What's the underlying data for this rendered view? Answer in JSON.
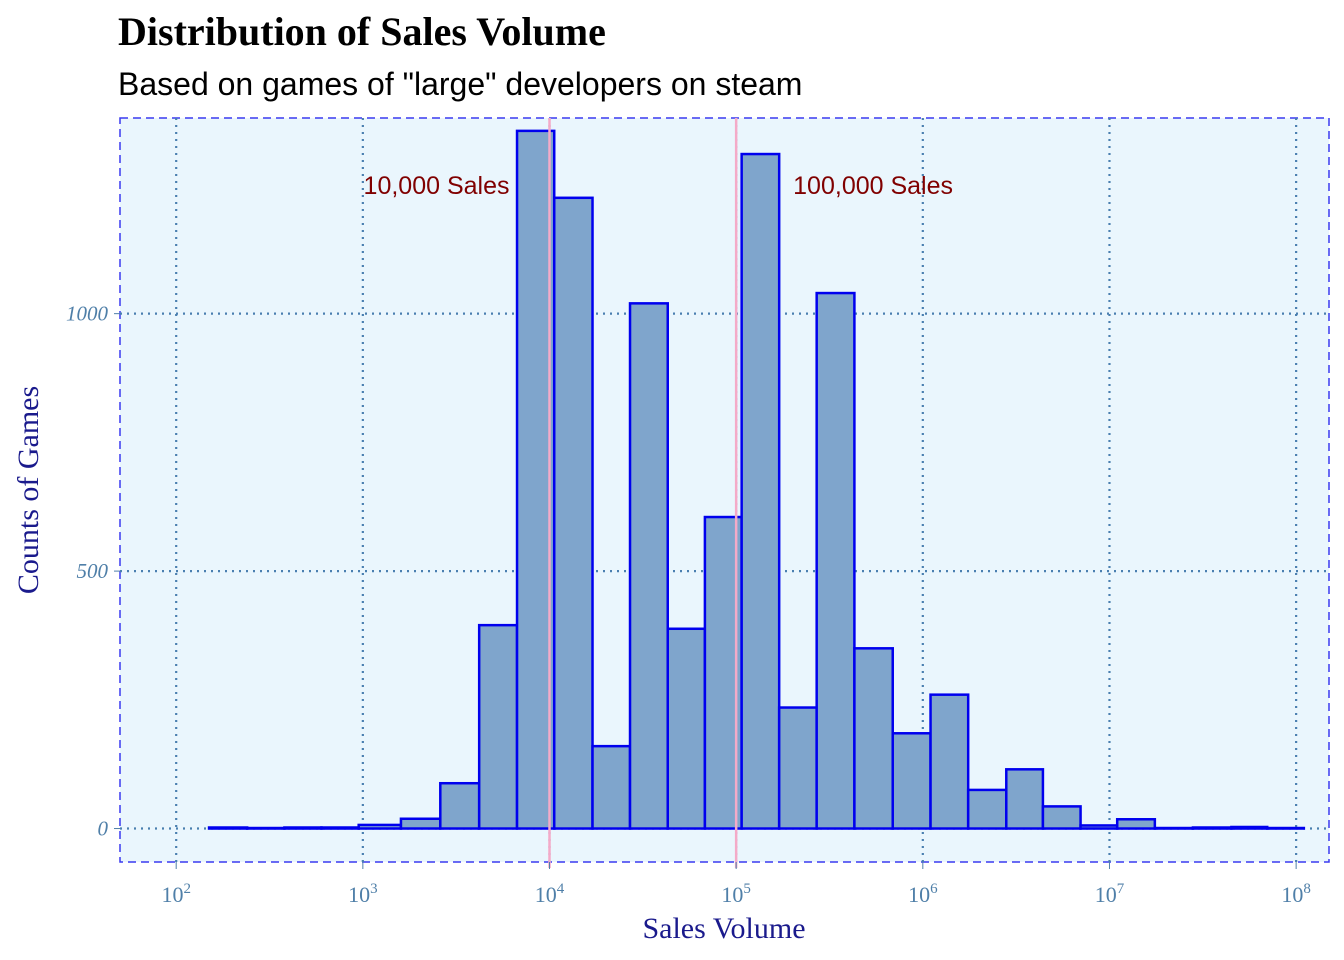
{
  "chart_data": {
    "type": "bar",
    "title": "Distribution of Sales Volume",
    "subtitle": "Based on games of  \"large\" developers on steam",
    "xlabel": "Sales Volume",
    "ylabel": "Counts of Games",
    "x_scale": "log10",
    "xlim": [
      50,
      150000000
    ],
    "ylim": [
      -65,
      1380
    ],
    "x_ticks": [
      {
        "value": 100,
        "base": "10",
        "exp": "2"
      },
      {
        "value": 1000,
        "base": "10",
        "exp": "3"
      },
      {
        "value": 10000,
        "base": "10",
        "exp": "4"
      },
      {
        "value": 100000,
        "base": "10",
        "exp": "5"
      },
      {
        "value": 1000000,
        "base": "10",
        "exp": "6"
      },
      {
        "value": 10000000,
        "base": "10",
        "exp": "7"
      },
      {
        "value": 100000000,
        "base": "10",
        "exp": "8"
      }
    ],
    "y_ticks": [
      {
        "value": 0,
        "label": "0"
      },
      {
        "value": 500,
        "label": "500"
      },
      {
        "value": 1000,
        "label": "1000"
      }
    ],
    "bins": [
      {
        "from": 150,
        "to": 240,
        "count": 2
      },
      {
        "from": 240,
        "to": 380,
        "count": 1
      },
      {
        "from": 380,
        "to": 600,
        "count": 2
      },
      {
        "from": 600,
        "to": 950,
        "count": 2
      },
      {
        "from": 950,
        "to": 1600,
        "count": 7
      },
      {
        "from": 1600,
        "to": 2600,
        "count": 19
      },
      {
        "from": 2600,
        "to": 4200,
        "count": 88
      },
      {
        "from": 4200,
        "to": 6700,
        "count": 395
      },
      {
        "from": 6700,
        "to": 10600,
        "count": 1355
      },
      {
        "from": 10600,
        "to": 17000,
        "count": 1225
      },
      {
        "from": 17000,
        "to": 27000,
        "count": 160
      },
      {
        "from": 27000,
        "to": 43000,
        "count": 1020
      },
      {
        "from": 43000,
        "to": 68000,
        "count": 388
      },
      {
        "from": 68000,
        "to": 107000,
        "count": 605
      },
      {
        "from": 107000,
        "to": 170000,
        "count": 1310
      },
      {
        "from": 170000,
        "to": 270000,
        "count": 235
      },
      {
        "from": 270000,
        "to": 430000,
        "count": 1040
      },
      {
        "from": 430000,
        "to": 690000,
        "count": 350
      },
      {
        "from": 690000,
        "to": 1100000,
        "count": 185
      },
      {
        "from": 1100000,
        "to": 1750000,
        "count": 260
      },
      {
        "from": 1750000,
        "to": 2800000,
        "count": 75
      },
      {
        "from": 2800000,
        "to": 4400000,
        "count": 115
      },
      {
        "from": 4400000,
        "to": 7000000,
        "count": 43
      },
      {
        "from": 7000000,
        "to": 11000000,
        "count": 6
      },
      {
        "from": 11000000,
        "to": 17500000,
        "count": 18
      },
      {
        "from": 17500000,
        "to": 28000000,
        "count": 1
      },
      {
        "from": 28000000,
        "to": 45000000,
        "count": 2
      },
      {
        "from": 45000000,
        "to": 70000000,
        "count": 3
      },
      {
        "from": 70000000,
        "to": 110000000,
        "count": 1
      }
    ],
    "reference_lines": [
      {
        "x": 10000,
        "label": "10,000 Sales",
        "color": "#f4aac8",
        "label_side": "left"
      },
      {
        "x": 100000,
        "label": "100,000 Sales",
        "color": "#f4aac8",
        "label_side": "right"
      }
    ],
    "annotation_y": 1250,
    "colors": {
      "bar_fill": "#7fa5cc",
      "bar_stroke": "#0000ee",
      "panel_background": "#eaf6fd",
      "grid": "#4a7fb0",
      "annotation_text": "#800000",
      "axis_title": "#1a1a8c",
      "tick_label": "#4f7fa8"
    },
    "grid": true,
    "legend": "none"
  }
}
